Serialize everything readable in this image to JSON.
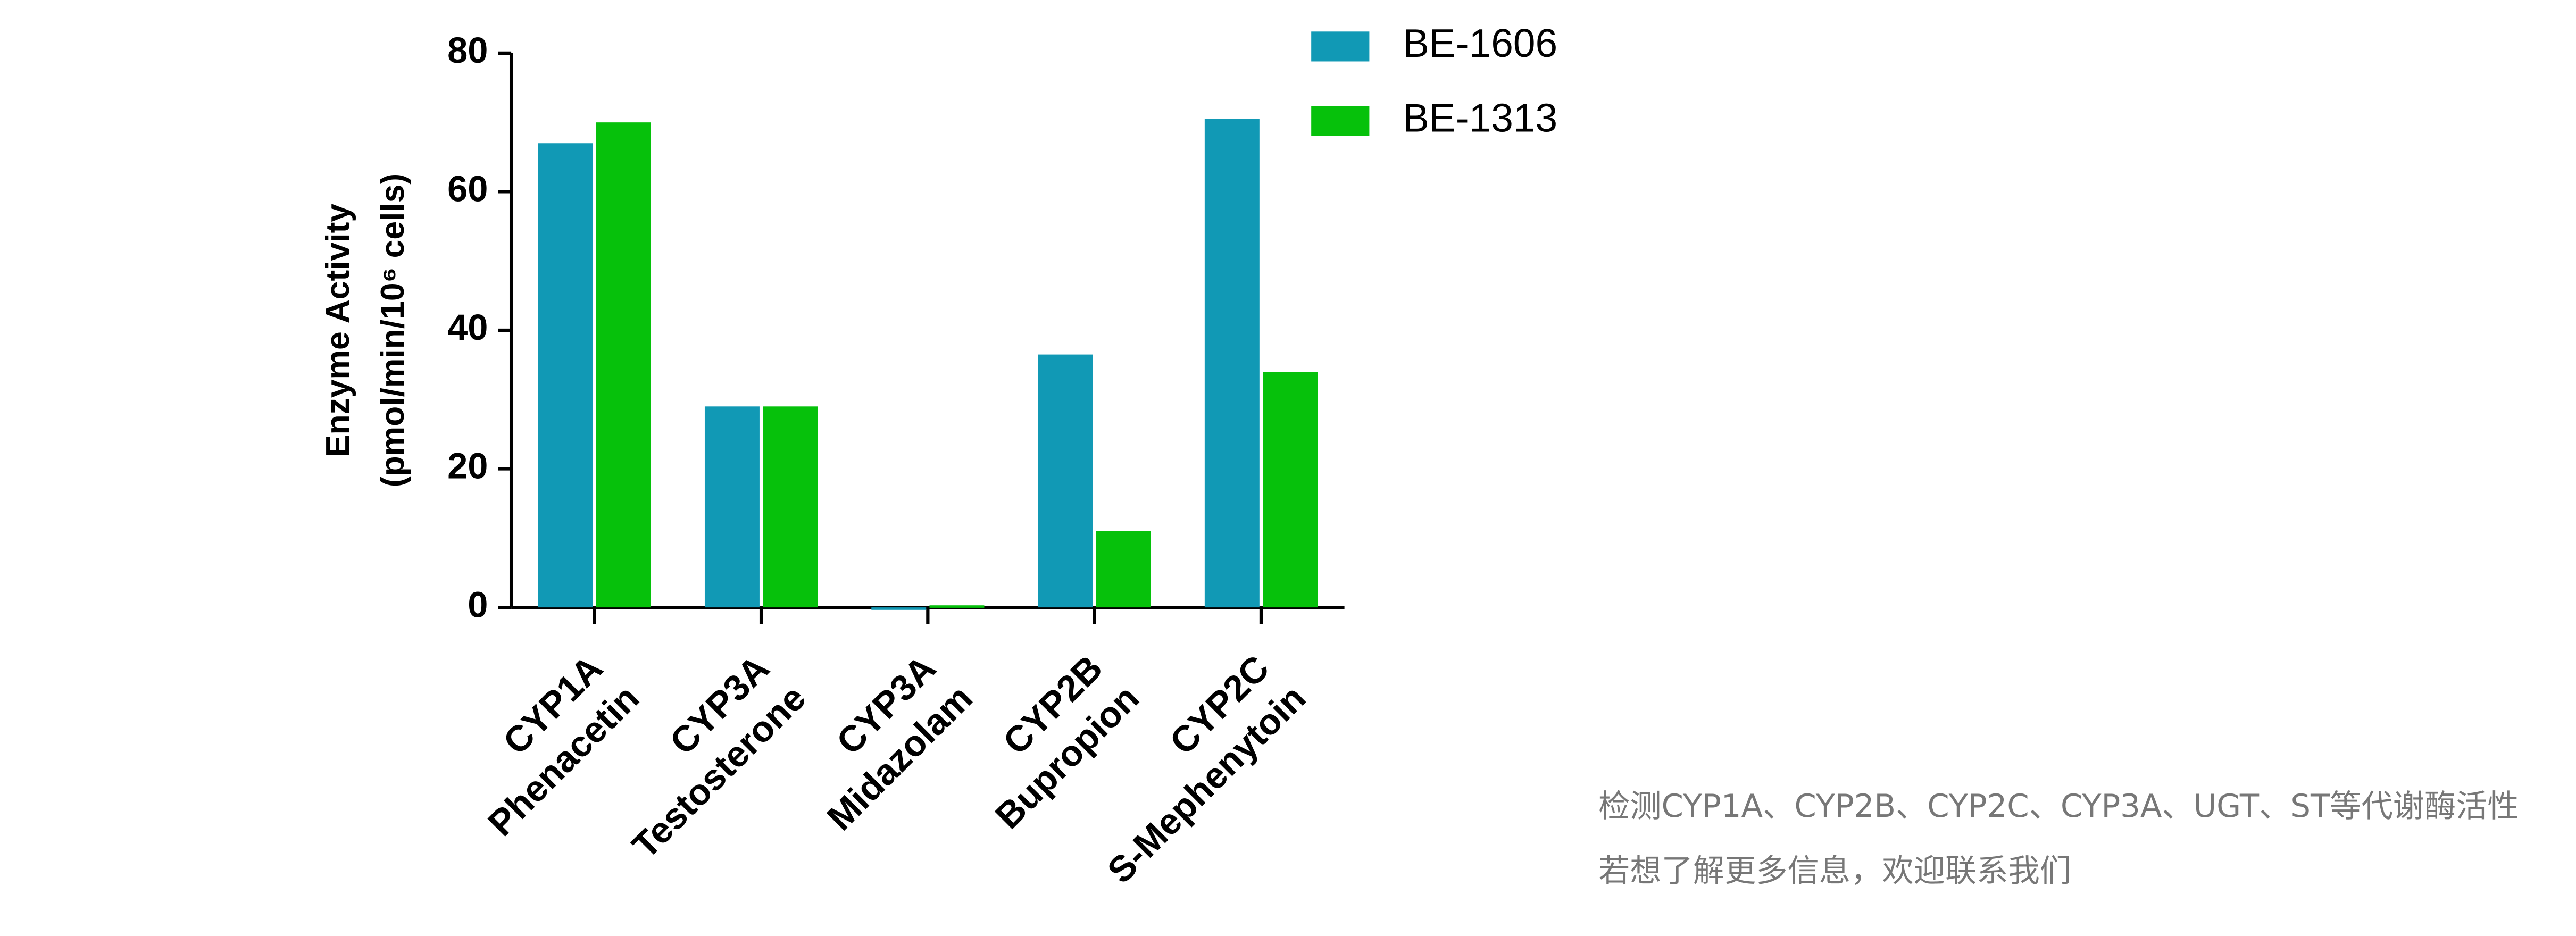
{
  "chart_data": {
    "type": "bar",
    "y_label": [
      "Enzyme Activity",
      "(pmol/min/10⁶ cells)"
    ],
    "categories": [
      "CYP1A",
      "CYP3A",
      "CYP3A",
      "CYP2B",
      "CYP2C"
    ],
    "substrates": [
      "Phenacetin",
      "Testosterone",
      "Midazolam",
      "Bupropion",
      "S-Mephenytoin"
    ],
    "series": [
      {
        "name": "BE-1606",
        "color": "#1199b5",
        "values": [
          67,
          29,
          0,
          36.5,
          70.5
        ]
      },
      {
        "name": "BE-1313",
        "color": "#06c10b",
        "values": [
          70,
          29,
          0.3,
          11,
          34
        ]
      }
    ],
    "ylim": [
      0,
      80
    ],
    "yticks": [
      0,
      20,
      40,
      60,
      80
    ],
    "legend": "top-right"
  },
  "note": [
    "检测CYP1A、CYP2B、CYP2C、CYP3A、UGT、ST等代谢酶活性",
    "若想了解更多信息，欢迎联系我们"
  ]
}
